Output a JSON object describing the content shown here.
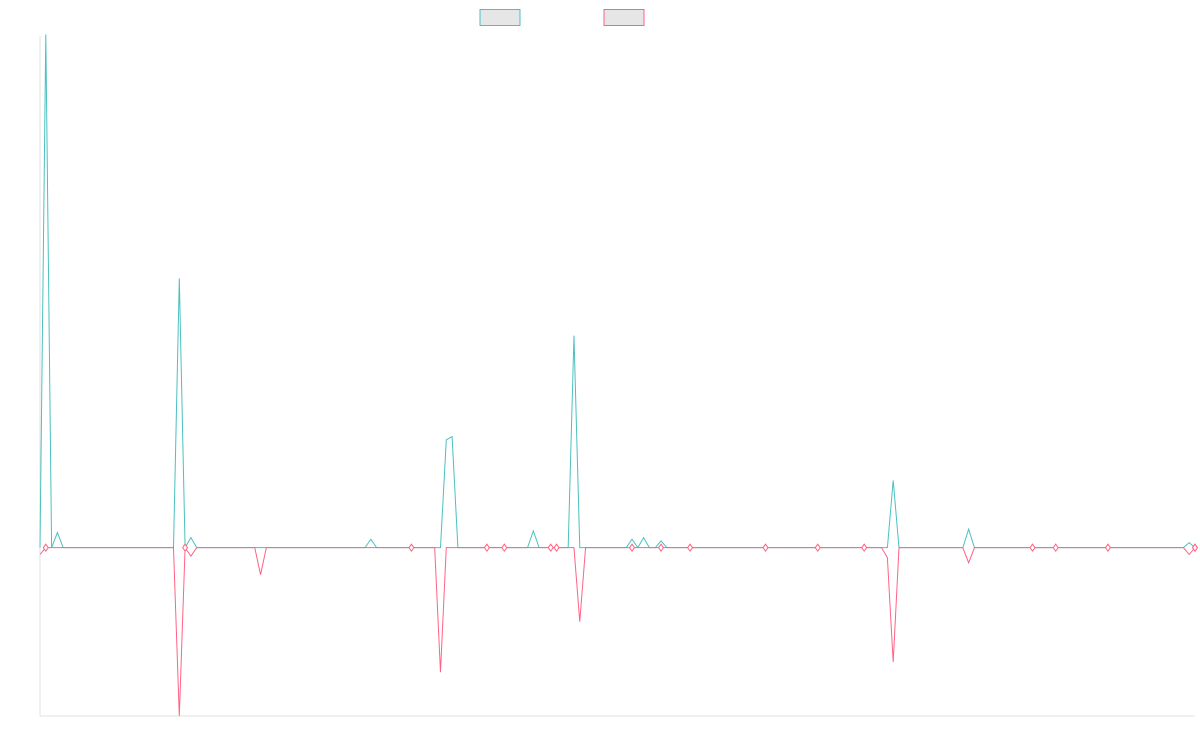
{
  "chart_data": {
    "type": "line",
    "title": "",
    "xlabel": "",
    "ylabel": "",
    "ylim": [
      -50,
      152
    ],
    "grid": false,
    "legend_position": "top-center",
    "legend_entries": [
      {
        "label": "",
        "color": "#4bc0c0"
      },
      {
        "label": "",
        "color": "#ff6384"
      }
    ],
    "x_count": 200,
    "series": [
      {
        "color": "#4bc0c0",
        "values": [
          0,
          152.5,
          0,
          4.5,
          0,
          0,
          0,
          0,
          0,
          0,
          0,
          0,
          0,
          0,
          0,
          0,
          0,
          0,
          0,
          0,
          0,
          0,
          0,
          0,
          80,
          0,
          3,
          0,
          0,
          0,
          0,
          0,
          0,
          0,
          0,
          0,
          0,
          0,
          0,
          0,
          0,
          0,
          0,
          0,
          0,
          0,
          0,
          0,
          0,
          0,
          0,
          0,
          0,
          0,
          0,
          0,
          0,
          2.5,
          0,
          0,
          0,
          0,
          0,
          0,
          0,
          0,
          0,
          0,
          0,
          0,
          32,
          33,
          0,
          0,
          0,
          0,
          0,
          0,
          0,
          0,
          0,
          0,
          0,
          0,
          0,
          5,
          0,
          0,
          0,
          0,
          0,
          0,
          63,
          0,
          0,
          0,
          0,
          0,
          0,
          0,
          0,
          0,
          0,
          0,
          3,
          0,
          0,
          0,
          0,
          0,
          0,
          0,
          0,
          0,
          0,
          0,
          0,
          0,
          0,
          0,
          0,
          0,
          0,
          0,
          0,
          0,
          0,
          0,
          0,
          0,
          0,
          0,
          0,
          0,
          0,
          0,
          0,
          0,
          0,
          0,
          0,
          0,
          0,
          0,
          0,
          0,
          0,
          0,
          0,
          0,
          0,
          0,
          0,
          0,
          0,
          0,
          0,
          0,
          0,
          0,
          0,
          0,
          0,
          0,
          0,
          0,
          0,
          0,
          0,
          0,
          0,
          0,
          0,
          0,
          0,
          0,
          0,
          0,
          0,
          0,
          0,
          0,
          0,
          0,
          0,
          0,
          0,
          0,
          0,
          0,
          0,
          0,
          0,
          0,
          0,
          0,
          0,
          0,
          0,
          0,
          0,
          0,
          0,
          0,
          0,
          0
        ]
      },
      {
        "color": "#ff6384",
        "values": [
          -2,
          0,
          0,
          0,
          0,
          0,
          0,
          0,
          0,
          0,
          0,
          0,
          0,
          0,
          0,
          0,
          0,
          0,
          0,
          0,
          0,
          0,
          0,
          0,
          -50,
          0,
          -2.5,
          0,
          0,
          0,
          0,
          0,
          0,
          0,
          0,
          0,
          0,
          0,
          -8,
          0,
          0,
          0,
          0,
          0,
          0,
          0,
          0,
          0,
          0,
          0,
          0,
          0,
          0,
          0,
          0,
          0,
          0,
          0,
          0,
          0,
          0,
          0,
          0,
          0,
          0,
          0,
          0,
          0,
          0,
          -37,
          0,
          0,
          0,
          0,
          0,
          0,
          0,
          0,
          0,
          0,
          0,
          0,
          0,
          0,
          0,
          0,
          0,
          0,
          0,
          0,
          0,
          0,
          0,
          -22,
          0,
          0,
          0,
          0,
          0,
          0,
          0,
          0,
          0,
          0,
          0,
          0,
          0,
          0,
          0,
          0,
          0,
          0,
          0,
          0,
          0,
          0,
          0,
          0,
          0,
          0,
          0,
          0,
          0,
          0,
          0,
          0,
          0,
          0,
          0,
          0,
          0,
          0,
          0,
          0,
          0,
          0,
          0,
          0,
          0,
          0,
          0,
          0,
          0,
          0,
          0,
          0,
          0,
          0,
          0,
          0,
          0,
          0,
          0,
          0,
          0,
          0,
          0,
          0,
          0,
          0,
          0,
          0,
          0,
          0,
          0,
          0,
          0,
          0,
          0,
          0,
          0,
          0,
          0,
          0,
          0,
          0,
          0,
          0,
          0,
          0,
          0,
          0,
          0,
          0,
          0,
          0,
          0,
          0,
          0,
          0,
          0,
          0,
          0,
          0,
          0,
          0,
          0,
          0,
          0,
          0,
          0,
          0,
          0,
          0,
          0,
          0,
          0,
          0,
          0,
          0
        ]
      }
    ],
    "extra_points": [
      {
        "series": 0,
        "x": 102,
        "y": 2.5
      },
      {
        "series": 0,
        "x": 107,
        "y": 2
      },
      {
        "series": 0,
        "x": 147,
        "y": 20
      },
      {
        "series": 0,
        "x": 160,
        "y": 5.5
      },
      {
        "series": 0,
        "x": 198,
        "y": 1.5
      },
      {
        "series": 1,
        "x": 146,
        "y": -3
      },
      {
        "series": 1,
        "x": 147,
        "y": -34
      },
      {
        "series": 1,
        "x": 160,
        "y": -4.5
      },
      {
        "series": 1,
        "x": 198,
        "y": -2
      }
    ],
    "markers": [
      1,
      25,
      64,
      77,
      80,
      88,
      89,
      102,
      107,
      112,
      125,
      134,
      142,
      171,
      175,
      184,
      203,
      204
    ]
  }
}
